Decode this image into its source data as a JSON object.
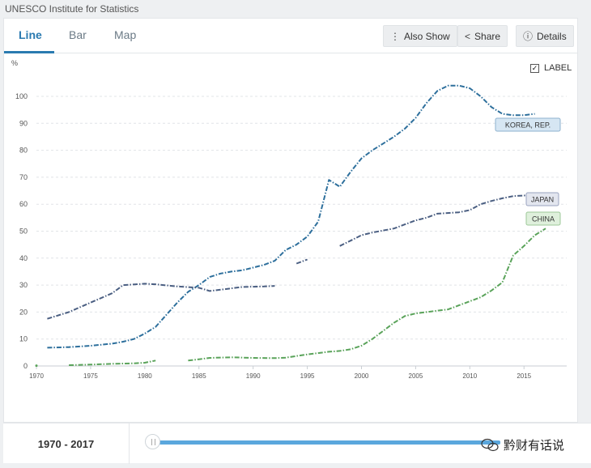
{
  "source": "UNESCO Institute for Statistics",
  "tabs": [
    {
      "label": "Line"
    },
    {
      "label": "Bar"
    },
    {
      "label": "Map"
    }
  ],
  "toolbar": {
    "also_show": "Also Show",
    "share": "Share",
    "details": "Details"
  },
  "label_toggle": {
    "text": "LABEL",
    "checked": true
  },
  "range_label": "1970 - 2017",
  "watermark": "黔财有话说",
  "colors": {
    "korea": "#2d6f9c",
    "japan": "#4b5f82",
    "china": "#5aa35a",
    "accent": "#2a7ab0"
  },
  "chart_data": {
    "type": "line",
    "yunit": "%",
    "ylim": [
      0,
      100
    ],
    "xlim": [
      1970,
      2017
    ],
    "yticks": [
      0,
      10,
      20,
      30,
      40,
      50,
      60,
      70,
      80,
      90,
      100
    ],
    "xticks": [
      1970,
      1975,
      1980,
      1985,
      1990,
      1995,
      2000,
      2005,
      2010,
      2015
    ],
    "series": [
      {
        "name": "KOREA, REP.",
        "key": "korea",
        "label_class": "korea",
        "segments": [
          [
            [
              1971,
              6.8
            ],
            [
              1973,
              7
            ],
            [
              1975,
              7.5
            ],
            [
              1977,
              8.3
            ],
            [
              1978,
              9
            ],
            [
              1979,
              10
            ],
            [
              1980,
              12
            ],
            [
              1981,
              14.5
            ],
            [
              1982,
              19
            ],
            [
              1983,
              23.5
            ],
            [
              1984,
              27.5
            ],
            [
              1985,
              30
            ],
            [
              1986,
              33
            ],
            [
              1987,
              34.3
            ],
            [
              1988,
              35
            ],
            [
              1989,
              35.5
            ],
            [
              1990,
              36.5
            ],
            [
              1991,
              37.5
            ],
            [
              1992,
              39
            ],
            [
              1993,
              43
            ],
            [
              1994,
              45
            ],
            [
              1995,
              48
            ],
            [
              1996,
              53.5
            ],
            [
              1997,
              69
            ],
            [
              1998,
              66.5
            ],
            [
              1999,
              72
            ],
            [
              2000,
              77
            ],
            [
              2001,
              80
            ],
            [
              2002,
              82.5
            ],
            [
              2003,
              85
            ],
            [
              2004,
              88
            ],
            [
              2005,
              92
            ],
            [
              2006,
              97.5
            ],
            [
              2007,
              102
            ],
            [
              2008,
              104
            ],
            [
              2009,
              104
            ],
            [
              2010,
              103
            ],
            [
              2011,
              100
            ],
            [
              2012,
              96
            ],
            [
              2013,
              93.5
            ],
            [
              2014,
              93
            ],
            [
              2015,
              93
            ],
            [
              2016,
              93.5
            ]
          ]
        ]
      },
      {
        "name": "JAPAN",
        "key": "japan",
        "label_class": "japan",
        "segments": [
          [
            [
              1971,
              17.5
            ],
            [
              1973,
              20
            ],
            [
              1975,
              23.5
            ],
            [
              1977,
              27
            ],
            [
              1978,
              30
            ],
            [
              1980,
              30.5
            ],
            [
              1981,
              30.3
            ],
            [
              1983,
              29.5
            ],
            [
              1985,
              29
            ],
            [
              1986,
              27.8
            ],
            [
              1987,
              28.3
            ],
            [
              1989,
              29.3
            ],
            [
              1991,
              29.5
            ],
            [
              1992,
              29.7
            ]
          ],
          [
            [
              1994,
              38
            ],
            [
              1995,
              39.5
            ]
          ],
          [
            [
              1998,
              44.5
            ],
            [
              1999,
              46.5
            ],
            [
              2000,
              48.5
            ],
            [
              2001,
              49.5
            ],
            [
              2003,
              51
            ],
            [
              2005,
              54
            ],
            [
              2006,
              55
            ],
            [
              2007,
              56.5
            ],
            [
              2009,
              57
            ],
            [
              2010,
              57.8
            ],
            [
              2011,
              60
            ],
            [
              2012,
              61.2
            ],
            [
              2013,
              62.2
            ],
            [
              2014,
              63
            ],
            [
              2015,
              63.2
            ],
            [
              2016,
              63.5
            ]
          ]
        ]
      },
      {
        "name": "CHINA",
        "key": "china",
        "label_class": "china",
        "segments": [
          [
            [
              1970,
              0.1
            ]
          ],
          [
            [
              1973,
              0.3
            ],
            [
              1975,
              0.5
            ],
            [
              1977,
              0.8
            ],
            [
              1979,
              1
            ],
            [
              1980,
              1.2
            ],
            [
              1981,
              2
            ]
          ],
          [
            [
              1984,
              2
            ],
            [
              1985,
              2.5
            ],
            [
              1986,
              3
            ],
            [
              1988,
              3.2
            ],
            [
              1990,
              3
            ],
            [
              1992,
              2.9
            ],
            [
              1993,
              3.1
            ],
            [
              1995,
              4.3
            ],
            [
              1997,
              5.3
            ],
            [
              1998,
              5.6
            ],
            [
              1999,
              6.2
            ],
            [
              2000,
              7.5
            ],
            [
              2001,
              10
            ],
            [
              2002,
              13
            ],
            [
              2003,
              16
            ],
            [
              2004,
              18.5
            ],
            [
              2005,
              19.5
            ],
            [
              2006,
              20
            ],
            [
              2007,
              20.5
            ],
            [
              2008,
              21
            ],
            [
              2009,
              22.5
            ],
            [
              2010,
              24
            ],
            [
              2011,
              25.5
            ],
            [
              2012,
              28
            ],
            [
              2013,
              31
            ],
            [
              2014,
              41
            ],
            [
              2015,
              44.5
            ],
            [
              2016,
              48.5
            ],
            [
              2017,
              51
            ]
          ]
        ]
      }
    ]
  }
}
